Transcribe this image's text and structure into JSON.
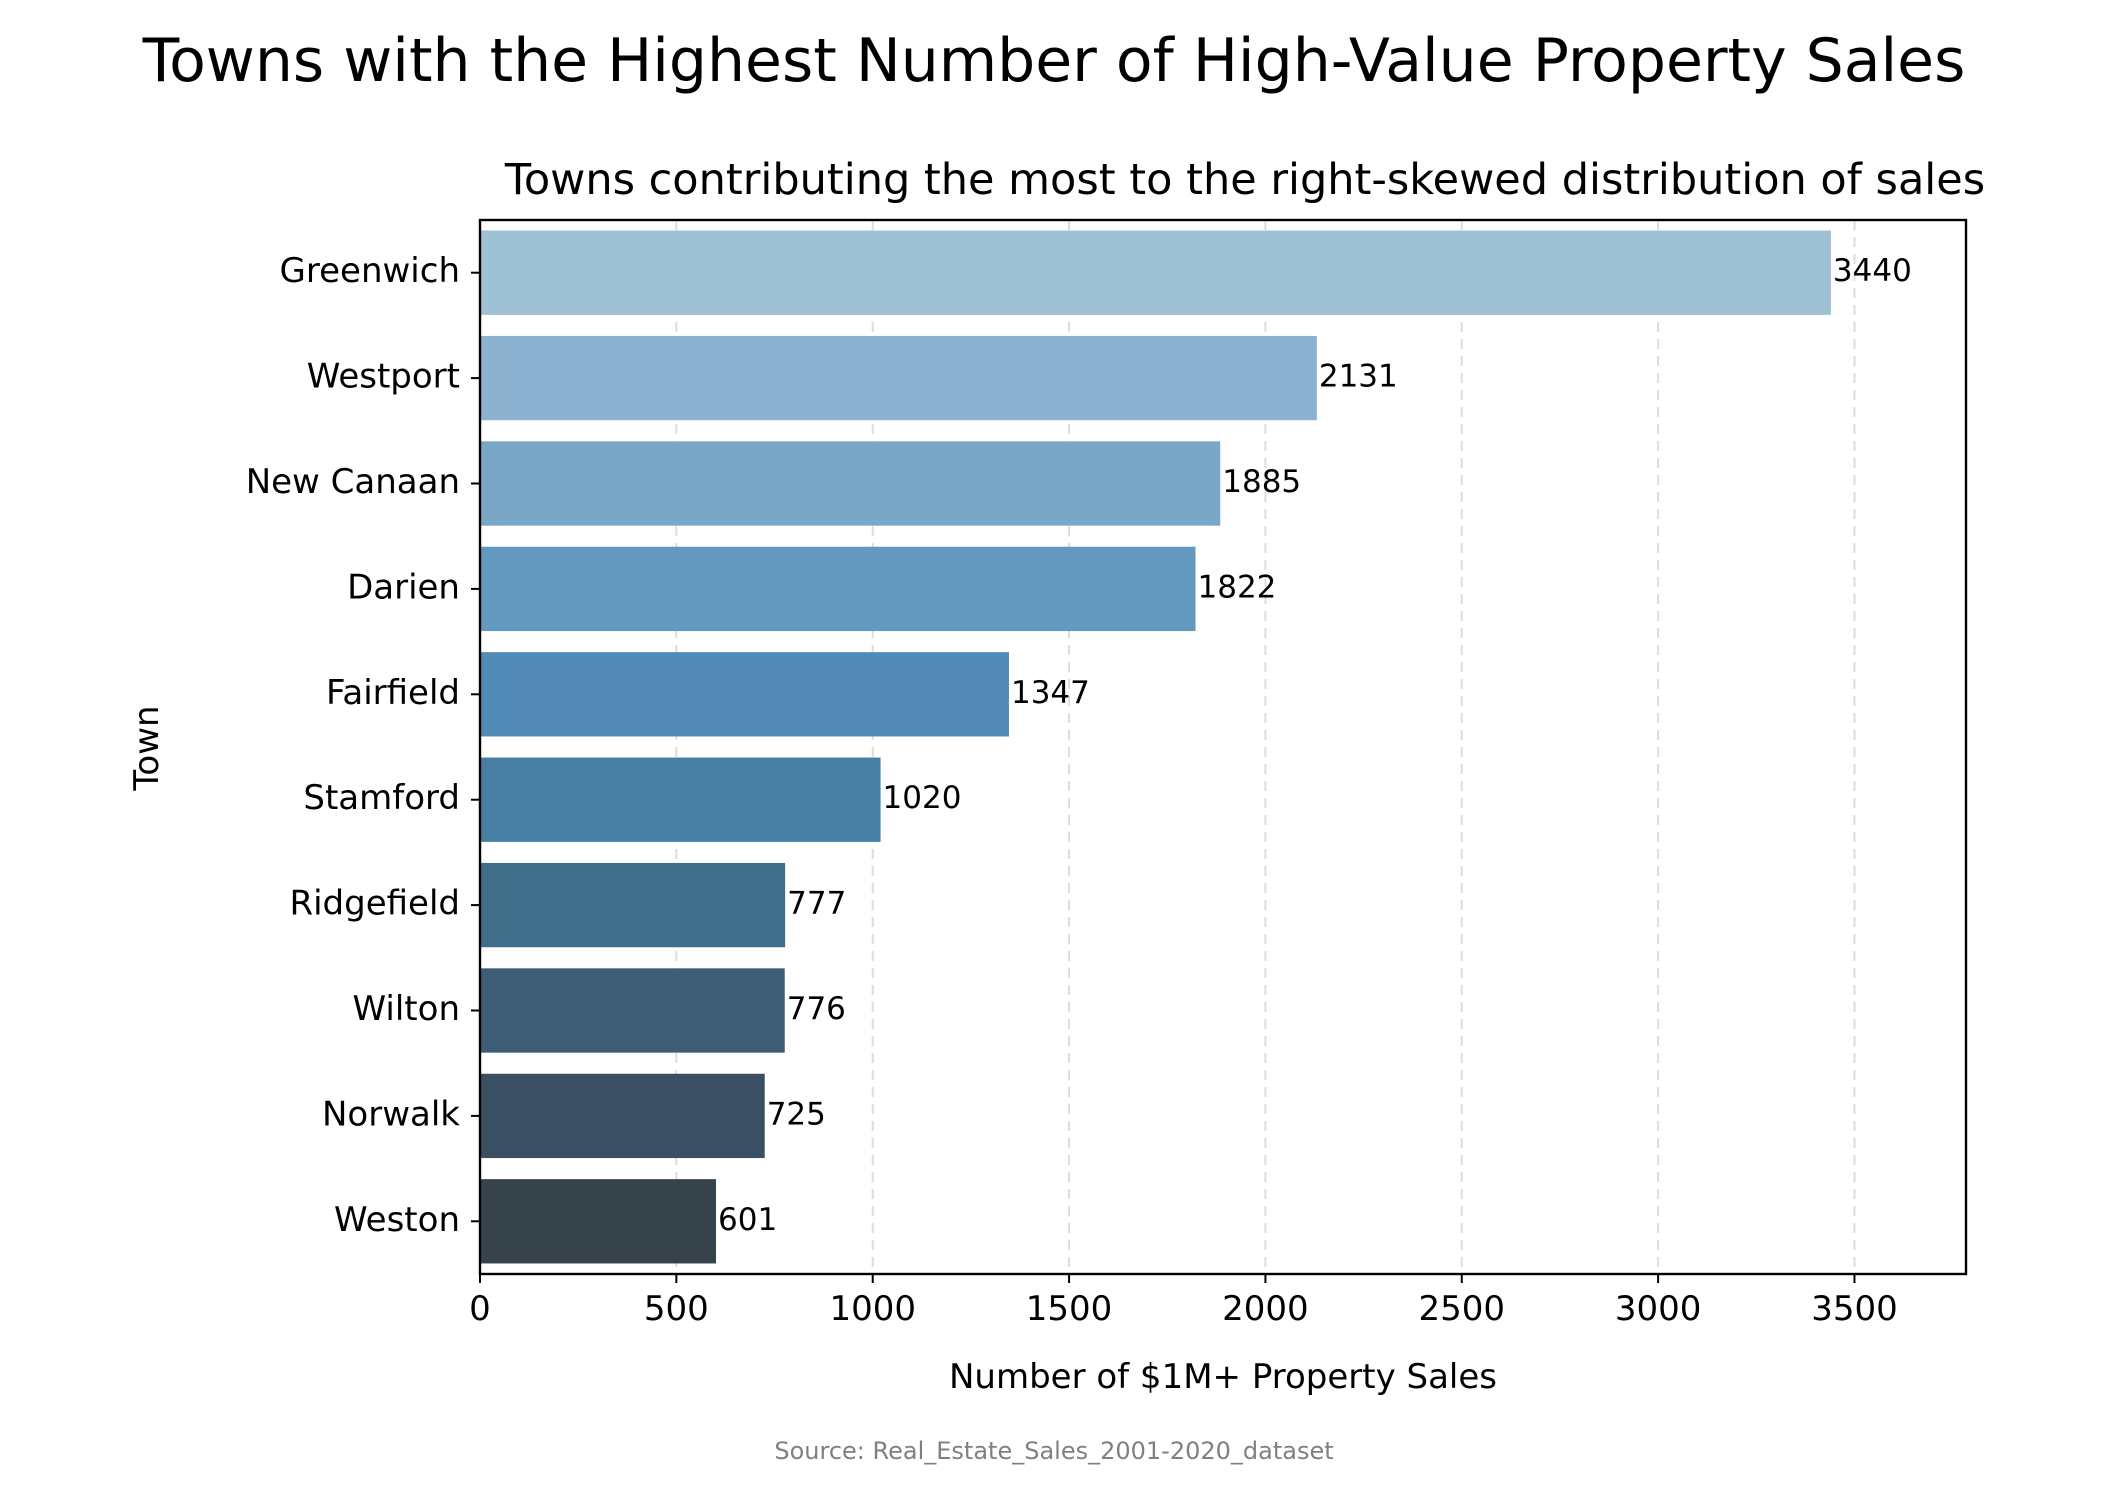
{
  "chart_data": {
    "type": "bar",
    "orientation": "horizontal",
    "title": "Towns with the Highest Number of High-Value Property Sales",
    "subtitle": "Towns contributing the most to the right-skewed distribution of sales",
    "xlabel": "Number of $1M+ Property Sales",
    "ylabel": "Town",
    "categories": [
      "Greenwich",
      "Westport",
      "New Canaan",
      "Darien",
      "Fairfield",
      "Stamford",
      "Ridgefield",
      "Wilton",
      "Norwalk",
      "Weston"
    ],
    "values": [
      3440,
      2131,
      1885,
      1822,
      1347,
      1020,
      777,
      776,
      725,
      601
    ],
    "data_labels": [
      "3440",
      "2131",
      "1885",
      "1822",
      "1347",
      "1020",
      "777",
      "776",
      "725",
      "601"
    ],
    "bar_colors": [
      "#9fc1d6",
      "#8bb2ce",
      "#79a7c8",
      "#6499bf",
      "#518bb6",
      "#477ea4",
      "#3f6e8b",
      "#3d5e76",
      "#3a4f62",
      "#37434a"
    ],
    "xlim": [
      0,
      3784
    ],
    "xticks": [
      0,
      500,
      1000,
      1500,
      2000,
      2500,
      3000,
      3500
    ],
    "xtick_labels": [
      "0",
      "500",
      "1000",
      "1500",
      "2000",
      "2500",
      "3000",
      "3500"
    ],
    "grid": "x-axis dashed",
    "legend": "none"
  },
  "source_note": "Source: Real_Estate_Sales_2001-2020_dataset",
  "colors": {
    "grid": "#dddddd",
    "axis": "#000000",
    "text": "#000000",
    "source_text": "#808080"
  }
}
